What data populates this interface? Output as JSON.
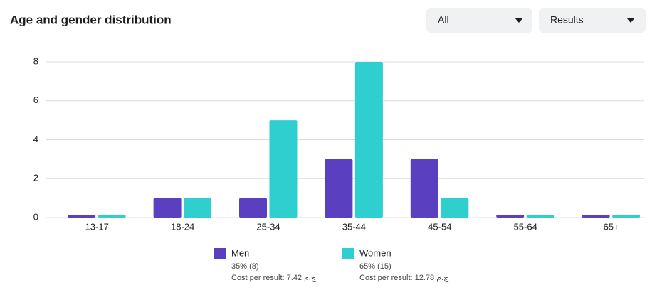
{
  "header": {
    "title": "Age and gender distribution",
    "filter": "All",
    "metric": "Results"
  },
  "chart_data": {
    "type": "bar",
    "categories": [
      "13-17",
      "18-24",
      "25-34",
      "35-44",
      "45-54",
      "55-64",
      "65+"
    ],
    "series": [
      {
        "name": "Men",
        "color": "#5b3fc1",
        "values": [
          0,
          1,
          1,
          3,
          3,
          0,
          0
        ],
        "share": "35% (8)",
        "cost": "Cost per result: 7.42 ج.م"
      },
      {
        "name": "Women",
        "color": "#2fcfcf",
        "values": [
          0,
          1,
          5,
          8,
          1,
          0,
          0
        ],
        "share": "65% (15)",
        "cost": "Cost per result: 12.78 ج.م"
      }
    ],
    "ylim": [
      0,
      8
    ],
    "yticks": [
      0,
      2,
      4,
      6,
      8
    ],
    "grid": true
  }
}
